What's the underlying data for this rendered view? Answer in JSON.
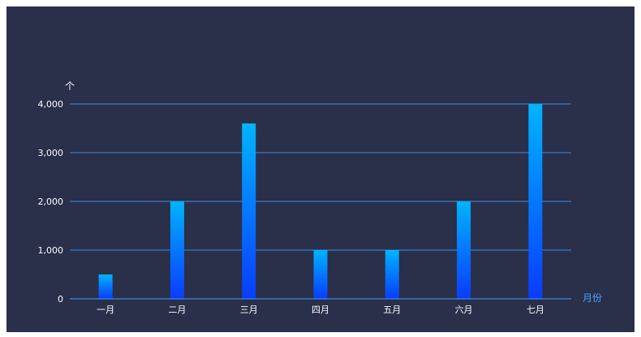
{
  "colors": {
    "background": "#2a2f4a",
    "grid": "#3aa0ff",
    "axis": "#3aa0ff",
    "bar_top": "#00b4ff",
    "bar_bottom": "#0a3cff",
    "axis_text": "#ffffff",
    "x_name_text": "#4aa3ff"
  },
  "chart_data": {
    "type": "bar",
    "categories": [
      "一月",
      "二月",
      "三月",
      "四月",
      "五月",
      "六月",
      "七月"
    ],
    "values": [
      500,
      2000,
      3600,
      1000,
      1000,
      2000,
      4000
    ],
    "ylabel": "个",
    "xlabel": "月份",
    "ylim": [
      0,
      4000
    ],
    "yticks": [
      0,
      1000,
      2000,
      3000,
      4000
    ],
    "ytick_labels": [
      "0",
      "1,000",
      "2,000",
      "3,000",
      "4,000"
    ],
    "grid": true,
    "legend": "none"
  }
}
